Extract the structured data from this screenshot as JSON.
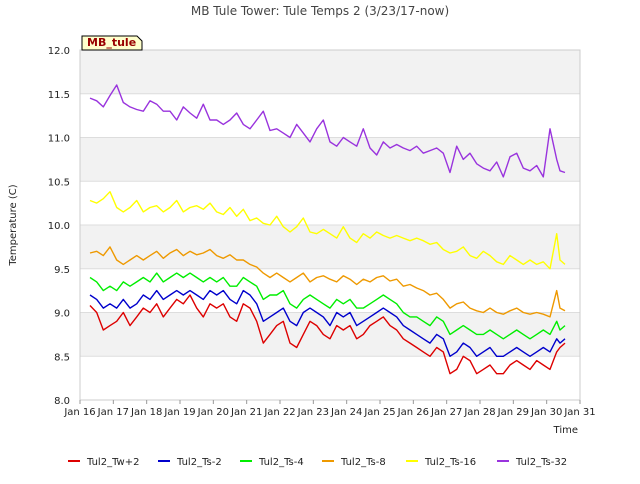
{
  "chart_data": {
    "type": "line",
    "title": "MB Tule Tower: Tule Temps 2 (3/23/17-now)",
    "xlabel": "Time",
    "ylabel": "Temperature (C)",
    "xlim": [
      16,
      31
    ],
    "ylim": [
      8.0,
      12.0
    ],
    "x_ticks": [
      16,
      17,
      18,
      19,
      20,
      21,
      22,
      23,
      24,
      25,
      26,
      27,
      28,
      29,
      30,
      31
    ],
    "x_tick_labels": [
      "Jan 16",
      "Jan 17",
      "Jan 18",
      "Jan 19",
      "Jan 20",
      "Jan 21",
      "Jan 22",
      "Jan 23",
      "Jan 24",
      "Jan 25",
      "Jan 26",
      "Jan 27",
      "Jan 28",
      "Jan 29",
      "Jan 30",
      "Jan 31"
    ],
    "y_ticks": [
      8.0,
      8.5,
      9.0,
      9.5,
      10.0,
      10.5,
      11.0,
      11.5,
      12.0
    ],
    "y_tick_labels": [
      "8.0",
      "8.5",
      "9.0",
      "9.5",
      "10.0",
      "10.5",
      "11.0",
      "11.5",
      "12.0"
    ],
    "grid": true,
    "station_label": "MB_tule",
    "legend_position": "bottom",
    "series": [
      {
        "name": "Tul2_Tw+2",
        "color": "#dd0000",
        "x": [
          16.3,
          16.5,
          16.7,
          16.9,
          17.1,
          17.3,
          17.5,
          17.7,
          17.9,
          18.1,
          18.3,
          18.5,
          18.7,
          18.9,
          19.1,
          19.3,
          19.5,
          19.7,
          19.9,
          20.1,
          20.3,
          20.5,
          20.7,
          20.9,
          21.1,
          21.3,
          21.5,
          21.7,
          21.9,
          22.1,
          22.3,
          22.5,
          22.7,
          22.9,
          23.1,
          23.3,
          23.5,
          23.7,
          23.9,
          24.1,
          24.3,
          24.5,
          24.7,
          24.9,
          25.1,
          25.3,
          25.5,
          25.7,
          25.9,
          26.1,
          26.3,
          26.5,
          26.7,
          26.9,
          27.1,
          27.3,
          27.5,
          27.7,
          27.9,
          28.1,
          28.3,
          28.5,
          28.7,
          28.9,
          29.1,
          29.3,
          29.5,
          29.7,
          29.9,
          30.1,
          30.3,
          30.4,
          30.55
        ],
        "values": [
          9.08,
          9.0,
          8.8,
          8.85,
          8.9,
          9.0,
          8.85,
          8.95,
          9.05,
          9.0,
          9.1,
          8.95,
          9.05,
          9.15,
          9.1,
          9.2,
          9.05,
          8.95,
          9.1,
          9.05,
          9.1,
          8.95,
          8.9,
          9.1,
          9.05,
          8.9,
          8.65,
          8.75,
          8.85,
          8.9,
          8.65,
          8.6,
          8.75,
          8.9,
          8.85,
          8.75,
          8.7,
          8.85,
          8.8,
          8.85,
          8.7,
          8.75,
          8.85,
          8.9,
          8.95,
          8.85,
          8.8,
          8.7,
          8.65,
          8.6,
          8.55,
          8.5,
          8.6,
          8.55,
          8.3,
          8.35,
          8.5,
          8.45,
          8.3,
          8.35,
          8.4,
          8.3,
          8.3,
          8.4,
          8.45,
          8.4,
          8.35,
          8.45,
          8.4,
          8.35,
          8.55,
          8.6,
          8.65
        ]
      },
      {
        "name": "Tul2_Ts-2",
        "color": "#0000cc",
        "x": [
          16.3,
          16.5,
          16.7,
          16.9,
          17.1,
          17.3,
          17.5,
          17.7,
          17.9,
          18.1,
          18.3,
          18.5,
          18.7,
          18.9,
          19.1,
          19.3,
          19.5,
          19.7,
          19.9,
          20.1,
          20.3,
          20.5,
          20.7,
          20.9,
          21.1,
          21.3,
          21.5,
          21.7,
          21.9,
          22.1,
          22.3,
          22.5,
          22.7,
          22.9,
          23.1,
          23.3,
          23.5,
          23.7,
          23.9,
          24.1,
          24.3,
          24.5,
          24.7,
          24.9,
          25.1,
          25.3,
          25.5,
          25.7,
          25.9,
          26.1,
          26.3,
          26.5,
          26.7,
          26.9,
          27.1,
          27.3,
          27.5,
          27.7,
          27.9,
          28.1,
          28.3,
          28.5,
          28.7,
          28.9,
          29.1,
          29.3,
          29.5,
          29.7,
          29.9,
          30.1,
          30.3,
          30.4,
          30.55
        ],
        "values": [
          9.2,
          9.15,
          9.05,
          9.1,
          9.05,
          9.15,
          9.05,
          9.1,
          9.2,
          9.15,
          9.25,
          9.15,
          9.2,
          9.25,
          9.2,
          9.25,
          9.2,
          9.15,
          9.25,
          9.2,
          9.25,
          9.15,
          9.1,
          9.25,
          9.2,
          9.1,
          8.9,
          8.95,
          9.0,
          9.05,
          8.9,
          8.85,
          9.0,
          9.05,
          9.0,
          8.95,
          8.85,
          9.0,
          8.95,
          9.0,
          8.85,
          8.9,
          8.95,
          9.0,
          9.05,
          9.0,
          8.95,
          8.85,
          8.8,
          8.75,
          8.7,
          8.65,
          8.75,
          8.7,
          8.5,
          8.55,
          8.65,
          8.6,
          8.5,
          8.55,
          8.6,
          8.5,
          8.5,
          8.55,
          8.6,
          8.55,
          8.5,
          8.55,
          8.6,
          8.55,
          8.7,
          8.65,
          8.7
        ]
      },
      {
        "name": "Tul2_Ts-4",
        "color": "#00ee00",
        "x": [
          16.3,
          16.5,
          16.7,
          16.9,
          17.1,
          17.3,
          17.5,
          17.7,
          17.9,
          18.1,
          18.3,
          18.5,
          18.7,
          18.9,
          19.1,
          19.3,
          19.5,
          19.7,
          19.9,
          20.1,
          20.3,
          20.5,
          20.7,
          20.9,
          21.1,
          21.3,
          21.5,
          21.7,
          21.9,
          22.1,
          22.3,
          22.5,
          22.7,
          22.9,
          23.1,
          23.3,
          23.5,
          23.7,
          23.9,
          24.1,
          24.3,
          24.5,
          24.7,
          24.9,
          25.1,
          25.3,
          25.5,
          25.7,
          25.9,
          26.1,
          26.3,
          26.5,
          26.7,
          26.9,
          27.1,
          27.3,
          27.5,
          27.7,
          27.9,
          28.1,
          28.3,
          28.5,
          28.7,
          28.9,
          29.1,
          29.3,
          29.5,
          29.7,
          29.9,
          30.1,
          30.3,
          30.4,
          30.55
        ],
        "values": [
          9.4,
          9.35,
          9.25,
          9.3,
          9.25,
          9.35,
          9.3,
          9.35,
          9.4,
          9.35,
          9.45,
          9.35,
          9.4,
          9.45,
          9.4,
          9.45,
          9.4,
          9.35,
          9.4,
          9.35,
          9.4,
          9.3,
          9.3,
          9.4,
          9.35,
          9.3,
          9.15,
          9.2,
          9.2,
          9.25,
          9.1,
          9.05,
          9.15,
          9.2,
          9.15,
          9.1,
          9.05,
          9.15,
          9.1,
          9.15,
          9.05,
          9.05,
          9.1,
          9.15,
          9.2,
          9.15,
          9.1,
          9.0,
          8.95,
          8.95,
          8.9,
          8.85,
          8.95,
          8.9,
          8.75,
          8.8,
          8.85,
          8.8,
          8.75,
          8.75,
          8.8,
          8.75,
          8.7,
          8.75,
          8.8,
          8.75,
          8.7,
          8.75,
          8.8,
          8.75,
          8.9,
          8.8,
          8.85
        ]
      },
      {
        "name": "Tul2_Ts-8",
        "color": "#ee9900",
        "x": [
          16.3,
          16.5,
          16.7,
          16.9,
          17.1,
          17.3,
          17.5,
          17.7,
          17.9,
          18.1,
          18.3,
          18.5,
          18.7,
          18.9,
          19.1,
          19.3,
          19.5,
          19.7,
          19.9,
          20.1,
          20.3,
          20.5,
          20.7,
          20.9,
          21.1,
          21.3,
          21.5,
          21.7,
          21.9,
          22.1,
          22.3,
          22.5,
          22.7,
          22.9,
          23.1,
          23.3,
          23.5,
          23.7,
          23.9,
          24.1,
          24.3,
          24.5,
          24.7,
          24.9,
          25.1,
          25.3,
          25.5,
          25.7,
          25.9,
          26.1,
          26.3,
          26.5,
          26.7,
          26.9,
          27.1,
          27.3,
          27.5,
          27.7,
          27.9,
          28.1,
          28.3,
          28.5,
          28.7,
          28.9,
          29.1,
          29.3,
          29.5,
          29.7,
          29.9,
          30.1,
          30.3,
          30.4,
          30.55
        ],
        "values": [
          9.68,
          9.7,
          9.65,
          9.75,
          9.6,
          9.55,
          9.6,
          9.65,
          9.6,
          9.65,
          9.7,
          9.62,
          9.68,
          9.72,
          9.65,
          9.7,
          9.66,
          9.68,
          9.72,
          9.65,
          9.62,
          9.66,
          9.6,
          9.6,
          9.55,
          9.52,
          9.45,
          9.4,
          9.45,
          9.4,
          9.35,
          9.4,
          9.45,
          9.35,
          9.4,
          9.42,
          9.38,
          9.35,
          9.42,
          9.38,
          9.32,
          9.38,
          9.35,
          9.4,
          9.42,
          9.36,
          9.38,
          9.3,
          9.32,
          9.28,
          9.25,
          9.2,
          9.22,
          9.15,
          9.05,
          9.1,
          9.12,
          9.05,
          9.02,
          9.0,
          9.05,
          9.0,
          8.98,
          9.02,
          9.05,
          9.0,
          8.98,
          9.0,
          8.98,
          8.95,
          9.25,
          9.05,
          9.02
        ]
      },
      {
        "name": "Tul2_Ts-16",
        "color": "#ffff00",
        "x": [
          16.3,
          16.5,
          16.7,
          16.9,
          17.1,
          17.3,
          17.5,
          17.7,
          17.9,
          18.1,
          18.3,
          18.5,
          18.7,
          18.9,
          19.1,
          19.3,
          19.5,
          19.7,
          19.9,
          20.1,
          20.3,
          20.5,
          20.7,
          20.9,
          21.1,
          21.3,
          21.5,
          21.7,
          21.9,
          22.1,
          22.3,
          22.5,
          22.7,
          22.9,
          23.1,
          23.3,
          23.5,
          23.7,
          23.9,
          24.1,
          24.3,
          24.5,
          24.7,
          24.9,
          25.1,
          25.3,
          25.5,
          25.7,
          25.9,
          26.1,
          26.3,
          26.5,
          26.7,
          26.9,
          27.1,
          27.3,
          27.5,
          27.7,
          27.9,
          28.1,
          28.3,
          28.5,
          28.7,
          28.9,
          29.1,
          29.3,
          29.5,
          29.7,
          29.9,
          30.1,
          30.3,
          30.4,
          30.55
        ],
        "values": [
          10.28,
          10.25,
          10.3,
          10.38,
          10.2,
          10.15,
          10.2,
          10.28,
          10.15,
          10.2,
          10.22,
          10.15,
          10.2,
          10.28,
          10.15,
          10.2,
          10.22,
          10.18,
          10.25,
          10.15,
          10.12,
          10.2,
          10.1,
          10.18,
          10.05,
          10.08,
          10.02,
          10.0,
          10.1,
          9.98,
          9.92,
          9.98,
          10.08,
          9.92,
          9.9,
          9.95,
          9.9,
          9.85,
          9.98,
          9.85,
          9.8,
          9.9,
          9.85,
          9.92,
          9.88,
          9.85,
          9.88,
          9.85,
          9.82,
          9.85,
          9.82,
          9.78,
          9.8,
          9.72,
          9.68,
          9.7,
          9.75,
          9.65,
          9.62,
          9.7,
          9.65,
          9.58,
          9.55,
          9.65,
          9.6,
          9.55,
          9.6,
          9.55,
          9.58,
          9.5,
          9.9,
          9.6,
          9.55
        ]
      },
      {
        "name": "Tul2_Ts-32",
        "color": "#9933dd",
        "x": [
          16.3,
          16.5,
          16.7,
          16.9,
          17.1,
          17.3,
          17.5,
          17.7,
          17.9,
          18.1,
          18.3,
          18.5,
          18.7,
          18.9,
          19.1,
          19.3,
          19.5,
          19.7,
          19.9,
          20.1,
          20.3,
          20.5,
          20.7,
          20.9,
          21.1,
          21.3,
          21.5,
          21.7,
          21.9,
          22.1,
          22.3,
          22.5,
          22.7,
          22.9,
          23.1,
          23.3,
          23.5,
          23.7,
          23.9,
          24.1,
          24.3,
          24.5,
          24.7,
          24.9,
          25.1,
          25.3,
          25.5,
          25.7,
          25.9,
          26.1,
          26.3,
          26.5,
          26.7,
          26.9,
          27.1,
          27.3,
          27.5,
          27.7,
          27.9,
          28.1,
          28.3,
          28.5,
          28.7,
          28.9,
          29.1,
          29.3,
          29.5,
          29.7,
          29.9,
          30.1,
          30.3,
          30.4,
          30.55
        ],
        "values": [
          11.45,
          11.42,
          11.35,
          11.48,
          11.6,
          11.4,
          11.35,
          11.32,
          11.3,
          11.42,
          11.38,
          11.3,
          11.3,
          11.2,
          11.35,
          11.28,
          11.22,
          11.38,
          11.2,
          11.2,
          11.15,
          11.2,
          11.28,
          11.15,
          11.1,
          11.2,
          11.3,
          11.08,
          11.1,
          11.05,
          11.0,
          11.15,
          11.05,
          10.95,
          11.1,
          11.2,
          10.95,
          10.9,
          11.0,
          10.95,
          10.9,
          11.1,
          10.88,
          10.8,
          10.95,
          10.88,
          10.92,
          10.88,
          10.85,
          10.9,
          10.82,
          10.85,
          10.88,
          10.82,
          10.6,
          10.9,
          10.75,
          10.82,
          10.7,
          10.65,
          10.62,
          10.72,
          10.55,
          10.78,
          10.82,
          10.65,
          10.62,
          10.68,
          10.55,
          11.1,
          10.75,
          10.62,
          10.6
        ]
      }
    ]
  }
}
